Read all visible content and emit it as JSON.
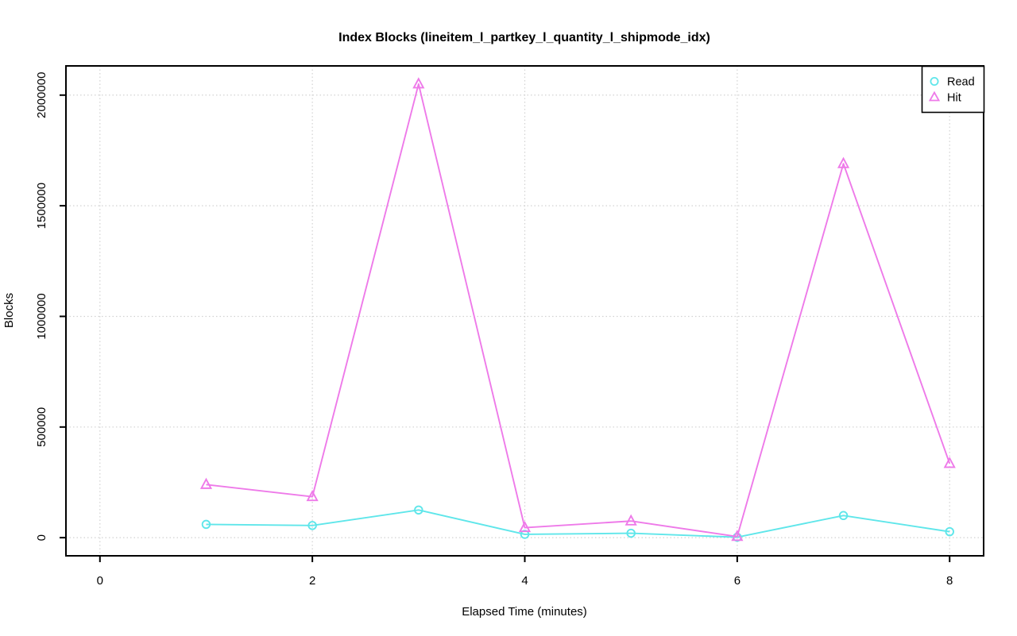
{
  "chart_data": {
    "type": "line",
    "title": "Index Blocks (lineitem_l_partkey_l_quantity_l_shipmode_idx)",
    "xlabel": "Elapsed Time (minutes)",
    "ylabel": "Blocks",
    "x": [
      1,
      2,
      3,
      4,
      5,
      6,
      7,
      8
    ],
    "series": [
      {
        "name": "Read",
        "marker": "circle",
        "color": "#5FE6EA",
        "values": [
          60000,
          55000,
          125000,
          15000,
          20000,
          2000,
          100000,
          27000
        ]
      },
      {
        "name": "Hit",
        "marker": "triangle",
        "color": "#EE7AE9",
        "values": [
          240000,
          185000,
          2050000,
          45000,
          75000,
          5000,
          1690000,
          335000
        ]
      }
    ],
    "xticks": [
      0,
      2,
      4,
      6,
      8
    ],
    "yticks": [
      0,
      500000,
      1000000,
      1500000,
      2000000
    ],
    "xlim": [
      0,
      8
    ],
    "ylim": [
      0,
      2050000
    ],
    "grid": true,
    "grid_style": "dotted",
    "legend_position": "top-right",
    "colors": {
      "grid": "#D2D2D2",
      "axis": "#000000",
      "background": "#FFFFFF"
    }
  }
}
